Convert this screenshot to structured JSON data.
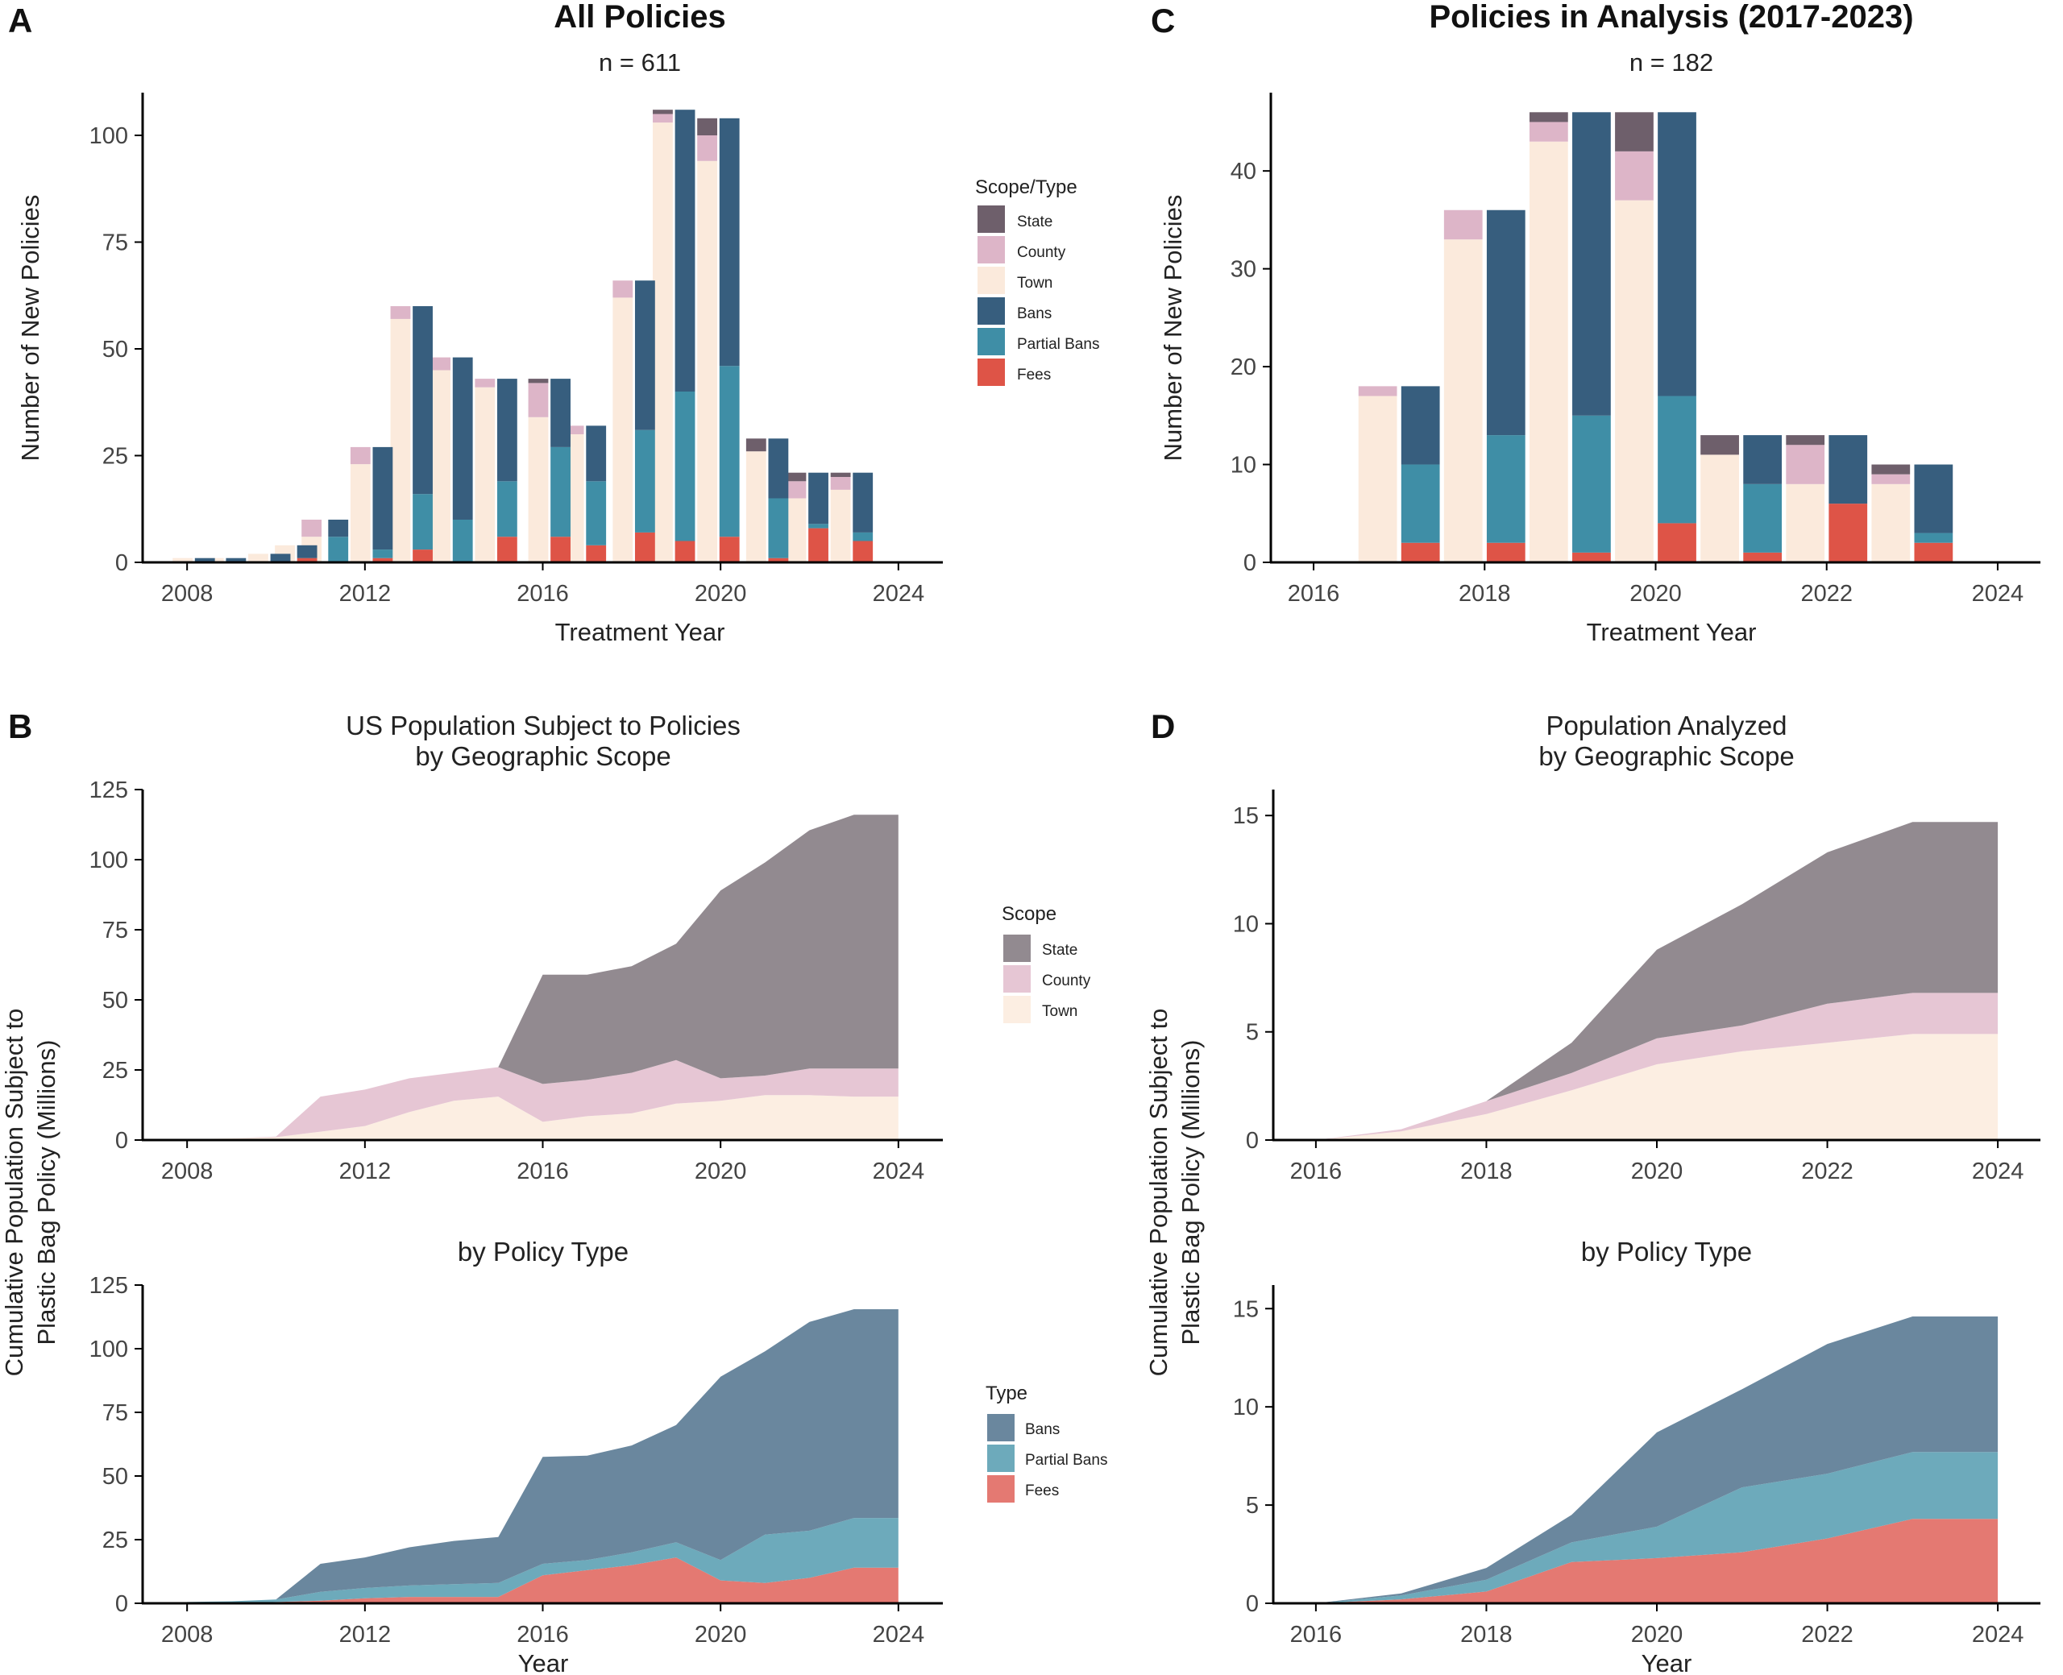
{
  "colors": {
    "state": "#6E5F6B",
    "county": "#DDB5C8",
    "town": "#FBEADC",
    "bans": "#375E7E",
    "partial": "#3F8EA6",
    "fees": "#DE5447",
    "area_state": "#928A90",
    "area_county": "#E6C6D4",
    "area_town": "#FCEEE2",
    "area_bans": "#6A879E",
    "area_partial": "#6DAABB",
    "area_fees": "#E47972"
  },
  "chart_data": [
    {
      "id": "A",
      "type": "bar",
      "panel_letter": "A",
      "title": "All Policies",
      "subtitle": "n = 611",
      "xlabel": "Treatment Year",
      "ylabel": "Number of New Policies",
      "xlim": [
        2007,
        2025
      ],
      "ylim": [
        0,
        110
      ],
      "xticks": [
        "2008",
        "2012",
        "2016",
        "2020",
        "2024"
      ],
      "yticks": [
        "0",
        "25",
        "50",
        "75",
        "100"
      ],
      "legend_title": "Scope/Type",
      "legend_entries": [
        {
          "label": "State",
          "color_key": "state"
        },
        {
          "label": "County",
          "color_key": "county"
        },
        {
          "label": "Town",
          "color_key": "town"
        },
        {
          "label": "Bans",
          "color_key": "bans"
        },
        {
          "label": "Partial Bans",
          "color_key": "partial"
        },
        {
          "label": "Fees",
          "color_key": "fees"
        }
      ],
      "x": [
        2008,
        2009,
        2010,
        2011,
        2012,
        2013,
        2014,
        2015,
        2016,
        2017,
        2018,
        2019,
        2020,
        2021,
        2022,
        2023
      ],
      "scope_series": [
        {
          "name": "Town",
          "color_key": "town",
          "values": [
            1,
            1,
            2,
            4,
            6,
            23,
            57,
            45,
            41,
            34,
            30,
            62,
            103,
            94,
            26,
            15,
            17
          ]
        },
        {
          "name": "County",
          "color_key": "county",
          "values": [
            0,
            0,
            0,
            0,
            4,
            4,
            3,
            3,
            2,
            8,
            2,
            4,
            2,
            6,
            0,
            4,
            3
          ]
        },
        {
          "name": "State",
          "color_key": "state",
          "values": [
            0,
            0,
            0,
            0,
            0,
            0,
            0,
            0,
            0,
            1,
            0,
            0,
            1,
            4,
            3,
            2,
            1
          ]
        }
      ],
      "type_series": [
        {
          "name": "Fees",
          "color_key": "fees",
          "values": [
            0,
            0,
            0,
            1,
            0,
            1,
            3,
            0,
            6,
            6,
            4,
            7,
            5,
            6,
            1,
            8,
            5
          ]
        },
        {
          "name": "Partial Bans",
          "color_key": "partial",
          "values": [
            0,
            0,
            0,
            0,
            6,
            2,
            13,
            10,
            13,
            21,
            15,
            24,
            35,
            40,
            14,
            1,
            2
          ]
        },
        {
          "name": "Bans",
          "color_key": "bans",
          "values": [
            1,
            1,
            2,
            3,
            4,
            24,
            44,
            38,
            24,
            16,
            13,
            35,
            66,
            58,
            14,
            12,
            14
          ]
        }
      ],
      "scope_x": [
        2007.9,
        2008.6,
        2009.6,
        2010.2,
        2010.8,
        2011.9,
        2012.8,
        2013.7,
        2014.7,
        2015.9,
        2016.7,
        2017.8,
        2018.7,
        2019.7,
        2020.8,
        2021.7,
        2022.7
      ],
      "type_x": [
        2008.4,
        2009.1,
        2010.1,
        2010.7,
        2011.4,
        2012.4,
        2013.3,
        2014.2,
        2015.2,
        2016.4,
        2017.2,
        2018.3,
        2019.2,
        2020.2,
        2021.3,
        2022.2,
        2023.2
      ]
    },
    {
      "id": "C",
      "type": "bar",
      "panel_letter": "C",
      "title": "Policies in Analysis (2017-2023)",
      "subtitle": "n = 182",
      "xlabel": "Treatment Year",
      "ylabel": "Number of New Policies",
      "xlim": [
        2015.5,
        2024.5
      ],
      "ylim": [
        0,
        48
      ],
      "xticks": [
        "2016",
        "2018",
        "2020",
        "2022",
        "2024"
      ],
      "yticks": [
        "0",
        "10",
        "20",
        "30",
        "40"
      ],
      "x": [
        2017,
        2018,
        2019,
        2020,
        2021,
        2022,
        2023
      ],
      "scope_series": [
        {
          "name": "Town",
          "color_key": "town",
          "values": [
            17,
            33,
            43,
            37,
            11,
            8,
            8
          ]
        },
        {
          "name": "County",
          "color_key": "county",
          "values": [
            1,
            3,
            2,
            5,
            0,
            4,
            1
          ]
        },
        {
          "name": "State",
          "color_key": "state",
          "values": [
            0,
            0,
            1,
            4,
            2,
            1,
            1
          ]
        }
      ],
      "type_series": [
        {
          "name": "Fees",
          "color_key": "fees",
          "values": [
            2,
            2,
            1,
            4,
            1,
            6,
            2
          ]
        },
        {
          "name": "Partial Bans",
          "color_key": "partial",
          "values": [
            8,
            11,
            14,
            13,
            7,
            0,
            1
          ]
        },
        {
          "name": "Bans",
          "color_key": "bans",
          "values": [
            8,
            23,
            31,
            29,
            5,
            7,
            7
          ]
        }
      ]
    },
    {
      "id": "B-scope",
      "type": "area",
      "panel_letter": "B",
      "title_lines": [
        "US Population Subject to Policies",
        "by Geographic Scope"
      ],
      "xlabel": "",
      "ylabel_lines": [
        "Cumulative Population Subject to",
        "Plastic Bag Policy (Millions)"
      ],
      "xlim": [
        2007,
        2025
      ],
      "ylim": [
        0,
        125
      ],
      "xticks": [
        "2008",
        "2012",
        "2016",
        "2020",
        "2024"
      ],
      "yticks": [
        "0",
        "25",
        "50",
        "75",
        "100",
        "125"
      ],
      "legend_title": "Scope",
      "legend_entries": [
        {
          "label": "State",
          "color_key": "area_state"
        },
        {
          "label": "County",
          "color_key": "area_county"
        },
        {
          "label": "Town",
          "color_key": "area_town"
        }
      ],
      "x": [
        2008,
        2009,
        2010,
        2011,
        2012,
        2013,
        2014,
        2015,
        2016,
        2017,
        2018,
        2019,
        2020,
        2021,
        2022,
        2023,
        2024
      ],
      "series": [
        {
          "name": "Town",
          "color_key": "area_town",
          "values": [
            0.3,
            0.6,
            1.0,
            3.0,
            5.0,
            10.0,
            14.0,
            15.5,
            6.5,
            8.5,
            9.5,
            13.0,
            14.0,
            16.0,
            16.0,
            15.5,
            15.5
          ]
        },
        {
          "name": "County",
          "color_key": "area_county",
          "values": [
            0.0,
            0.0,
            0.2,
            12.5,
            13.0,
            12.0,
            10.0,
            10.5,
            13.5,
            13.0,
            14.5,
            15.5,
            8.0,
            7.0,
            9.5,
            10.0,
            10.0
          ]
        },
        {
          "name": "State",
          "color_key": "area_state",
          "values": [
            0.0,
            0.0,
            0.0,
            0.0,
            0.0,
            0.0,
            0.0,
            0.0,
            39.0,
            37.5,
            38.0,
            41.5,
            67.0,
            76.0,
            85.0,
            90.5,
            90.5
          ]
        }
      ]
    },
    {
      "id": "B-type",
      "type": "area",
      "title_lines": [
        "by Policy Type"
      ],
      "xlabel": "Year",
      "ylabel_lines": [],
      "xlim": [
        2007,
        2025
      ],
      "ylim": [
        0,
        125
      ],
      "xticks": [
        "2008",
        "2012",
        "2016",
        "2020",
        "2024"
      ],
      "yticks": [
        "0",
        "25",
        "50",
        "75",
        "100",
        "125"
      ],
      "legend_title": "Type",
      "legend_entries": [
        {
          "label": "Bans",
          "color_key": "area_bans"
        },
        {
          "label": "Partial Bans",
          "color_key": "area_partial"
        },
        {
          "label": "Fees",
          "color_key": "area_fees"
        }
      ],
      "x": [
        2008,
        2009,
        2010,
        2011,
        2012,
        2013,
        2014,
        2015,
        2016,
        2017,
        2018,
        2019,
        2020,
        2021,
        2022,
        2023,
        2024
      ],
      "series": [
        {
          "name": "Fees",
          "color_key": "area_fees",
          "values": [
            0.0,
            0.0,
            0.5,
            1.0,
            2.0,
            2.5,
            2.5,
            2.5,
            11.0,
            13.0,
            15.0,
            18.0,
            9.0,
            8.0,
            10.0,
            14.0,
            14.0
          ]
        },
        {
          "name": "Partial Bans",
          "color_key": "area_partial",
          "values": [
            0.5,
            0.8,
            1.0,
            3.5,
            4.0,
            4.5,
            5.0,
            5.5,
            4.5,
            4.0,
            5.0,
            6.0,
            8.0,
            19.0,
            18.5,
            19.5,
            19.5
          ]
        },
        {
          "name": "Bans",
          "color_key": "area_bans",
          "values": [
            0.0,
            0.0,
            0.0,
            11.0,
            12.0,
            15.0,
            17.0,
            18.0,
            42.0,
            41.0,
            42.0,
            46.0,
            72.0,
            72.0,
            82.0,
            82.0,
            82.0
          ]
        }
      ]
    },
    {
      "id": "D-scope",
      "type": "area",
      "panel_letter": "D",
      "title_lines": [
        "Population Analyzed",
        "by Geographic Scope"
      ],
      "xlabel": "",
      "ylabel_lines": [
        "Cumulative Population Subject to",
        "Plastic Bag Policy (Millions)"
      ],
      "xlim": [
        2015.5,
        2024.5
      ],
      "ylim": [
        0,
        16.2
      ],
      "xticks": [
        "2016",
        "2018",
        "2020",
        "2022",
        "2024"
      ],
      "yticks": [
        "0",
        "5",
        "10",
        "15"
      ],
      "x": [
        2016,
        2017,
        2018,
        2019,
        2020,
        2021,
        2022,
        2023,
        2024
      ],
      "series": [
        {
          "name": "Town",
          "color_key": "area_town",
          "values": [
            0.0,
            0.4,
            1.2,
            2.3,
            3.5,
            4.1,
            4.5,
            4.9,
            4.9
          ]
        },
        {
          "name": "County",
          "color_key": "area_county",
          "values": [
            0.0,
            0.1,
            0.6,
            0.8,
            1.2,
            1.2,
            1.8,
            1.9,
            1.9
          ]
        },
        {
          "name": "State",
          "color_key": "area_state",
          "values": [
            0.0,
            0.0,
            0.0,
            1.4,
            4.1,
            5.6,
            7.0,
            7.9,
            7.9
          ]
        }
      ]
    },
    {
      "id": "D-type",
      "type": "area",
      "title_lines": [
        "by Policy Type"
      ],
      "xlabel": "Year",
      "ylabel_lines": [
        "Cumulative Population Subject to",
        "Plastic Bag Policy (Millions)"
      ],
      "xlim": [
        2015.5,
        2024.5
      ],
      "ylim": [
        0,
        16.2
      ],
      "xticks": [
        "2016",
        "2018",
        "2020",
        "2022",
        "2024"
      ],
      "yticks": [
        "0",
        "5",
        "10",
        "15"
      ],
      "x": [
        2016,
        2017,
        2018,
        2019,
        2020,
        2021,
        2022,
        2023,
        2024
      ],
      "series": [
        {
          "name": "Fees",
          "color_key": "area_fees",
          "values": [
            0.0,
            0.2,
            0.6,
            2.1,
            2.3,
            2.6,
            3.3,
            4.3,
            4.3
          ]
        },
        {
          "name": "Partial Bans",
          "color_key": "area_partial",
          "values": [
            0.0,
            0.2,
            0.6,
            1.0,
            1.6,
            3.3,
            3.3,
            3.4,
            3.4
          ]
        },
        {
          "name": "Bans",
          "color_key": "area_bans",
          "values": [
            0.0,
            0.1,
            0.6,
            1.4,
            4.8,
            5.0,
            6.6,
            6.9,
            6.9
          ]
        }
      ]
    }
  ]
}
